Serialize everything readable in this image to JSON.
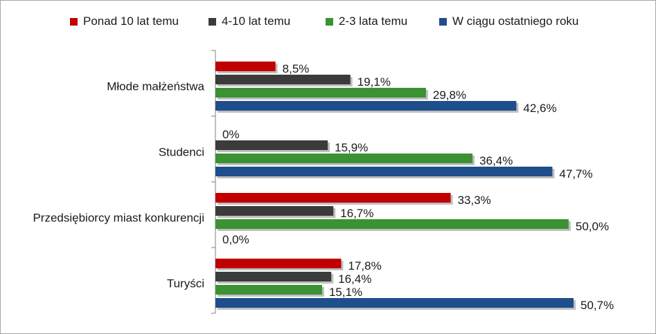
{
  "chart_data": {
    "type": "bar",
    "orientation": "horizontal",
    "categories": [
      "Młode małżeństwa",
      "Studenci",
      "Przedsiębiorcy miast konkurencji",
      "Turyści"
    ],
    "series": [
      {
        "name": "Ponad 10 lat temu",
        "color": "#c00000",
        "values": [
          8.5,
          0,
          33.3,
          17.8
        ],
        "labels": [
          "8,5%",
          "0%",
          "33,3%",
          "17,8%"
        ]
      },
      {
        "name": "4-10 lat temu",
        "color": "#3b3b3b",
        "values": [
          19.1,
          15.9,
          16.7,
          16.4
        ],
        "labels": [
          "19,1%",
          "15,9%",
          "16,7%",
          "16,4%"
        ]
      },
      {
        "name": "2-3 lata temu",
        "color": "#3a9232",
        "values": [
          29.8,
          36.4,
          50.0,
          15.1
        ],
        "labels": [
          "29,8%",
          "36,4%",
          "50,0%",
          "15,1%"
        ]
      },
      {
        "name": "W ciągu ostatniego roku",
        "color": "#1f4e8c",
        "values": [
          42.6,
          47.7,
          0.0,
          50.7
        ],
        "labels": [
          "42,6%",
          "47,7%",
          "0,0%",
          "50,7%"
        ]
      }
    ],
    "xlim": [
      0,
      50.7
    ],
    "legend_position": "top",
    "grid": false
  }
}
